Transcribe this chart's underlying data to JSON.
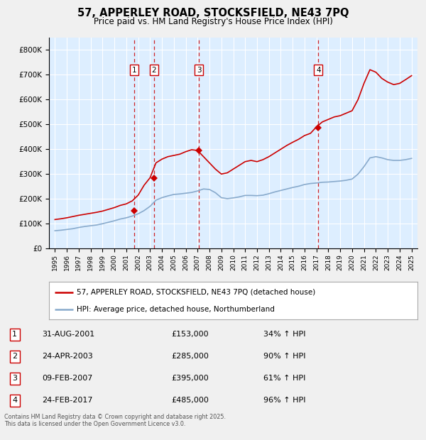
{
  "title": "57, APPERLEY ROAD, STOCKSFIELD, NE43 7PQ",
  "subtitle": "Price paid vs. HM Land Registry's House Price Index (HPI)",
  "footer": "Contains HM Land Registry data © Crown copyright and database right 2025.\nThis data is licensed under the Open Government Licence v3.0.",
  "legend_line1": "57, APPERLEY ROAD, STOCKSFIELD, NE43 7PQ (detached house)",
  "legend_line2": "HPI: Average price, detached house, Northumberland",
  "sale_color": "#cc0000",
  "hpi_color": "#88aacc",
  "background_color": "#ddeeff",
  "outer_bg": "#f0f0f0",
  "vline_color": "#cc0000",
  "ylim": [
    0,
    850000
  ],
  "yticks": [
    0,
    100000,
    200000,
    300000,
    400000,
    500000,
    600000,
    700000,
    800000
  ],
  "xlim_start": 1994.5,
  "xlim_end": 2025.5,
  "sales": [
    {
      "label": "1",
      "date": 2001.67,
      "price": 153000,
      "pct": "34%",
      "date_str": "31-AUG-2001"
    },
    {
      "label": "2",
      "date": 2003.32,
      "price": 285000,
      "pct": "90%",
      "date_str": "24-APR-2003"
    },
    {
      "label": "3",
      "date": 2007.11,
      "price": 395000,
      "pct": "61%",
      "date_str": "09-FEB-2007"
    },
    {
      "label": "4",
      "date": 2017.16,
      "price": 485000,
      "pct": "96%",
      "date_str": "24-FEB-2017"
    }
  ],
  "hpi_years": [
    1995.0,
    1995.5,
    1996.0,
    1996.5,
    1997.0,
    1997.5,
    1998.0,
    1998.5,
    1999.0,
    1999.5,
    2000.0,
    2000.5,
    2001.0,
    2001.5,
    2002.0,
    2002.5,
    2003.0,
    2003.5,
    2004.0,
    2004.5,
    2005.0,
    2005.5,
    2006.0,
    2006.5,
    2007.0,
    2007.5,
    2008.0,
    2008.5,
    2009.0,
    2009.5,
    2010.0,
    2010.5,
    2011.0,
    2011.5,
    2012.0,
    2012.5,
    2013.0,
    2013.5,
    2014.0,
    2014.5,
    2015.0,
    2015.5,
    2016.0,
    2016.5,
    2017.0,
    2017.5,
    2018.0,
    2018.5,
    2019.0,
    2019.5,
    2020.0,
    2020.5,
    2021.0,
    2021.5,
    2022.0,
    2022.5,
    2023.0,
    2023.5,
    2024.0,
    2024.5,
    2025.0
  ],
  "hpi_values": [
    72000,
    74000,
    77000,
    80000,
    85000,
    89000,
    92000,
    95000,
    100000,
    106000,
    112000,
    119000,
    124000,
    131000,
    140000,
    153000,
    170000,
    195000,
    205000,
    212000,
    218000,
    220000,
    223000,
    226000,
    232000,
    240000,
    238000,
    225000,
    205000,
    201000,
    204000,
    208000,
    214000,
    214000,
    213000,
    215000,
    221000,
    228000,
    234000,
    240000,
    246000,
    251000,
    258000,
    262000,
    264000,
    267000,
    268000,
    270000,
    272000,
    275000,
    280000,
    300000,
    330000,
    365000,
    370000,
    365000,
    358000,
    355000,
    355000,
    358000,
    363000
  ],
  "sale_hpi_years": [
    1995.0,
    1995.5,
    1996.0,
    1996.5,
    1997.0,
    1997.5,
    1998.0,
    1998.5,
    1999.0,
    1999.5,
    2000.0,
    2000.5,
    2001.0,
    2001.5,
    2002.0,
    2002.5,
    2003.0,
    2003.5,
    2004.0,
    2004.5,
    2005.0,
    2005.5,
    2006.0,
    2006.5,
    2007.0,
    2007.5,
    2008.0,
    2008.5,
    2009.0,
    2009.5,
    2010.0,
    2010.5,
    2011.0,
    2011.5,
    2012.0,
    2012.5,
    2013.0,
    2013.5,
    2014.0,
    2014.5,
    2015.0,
    2015.5,
    2016.0,
    2016.5,
    2017.0,
    2017.5,
    2018.0,
    2018.5,
    2019.0,
    2019.5,
    2020.0,
    2020.5,
    2021.0,
    2021.5,
    2022.0,
    2022.5,
    2023.0,
    2023.5,
    2024.0,
    2024.5,
    2025.0
  ],
  "sale_hpi_values": [
    117000,
    120000,
    124000,
    129000,
    134000,
    138000,
    142000,
    146000,
    151000,
    158000,
    165000,
    174000,
    180000,
    192000,
    215000,
    255000,
    285000,
    345000,
    360000,
    370000,
    375000,
    380000,
    390000,
    398000,
    395000,
    370000,
    345000,
    320000,
    300000,
    305000,
    320000,
    335000,
    350000,
    355000,
    350000,
    358000,
    370000,
    385000,
    400000,
    415000,
    428000,
    440000,
    455000,
    464000,
    490000,
    510000,
    520000,
    530000,
    535000,
    545000,
    555000,
    600000,
    665000,
    720000,
    710000,
    685000,
    670000,
    660000,
    665000,
    680000,
    696000
  ]
}
